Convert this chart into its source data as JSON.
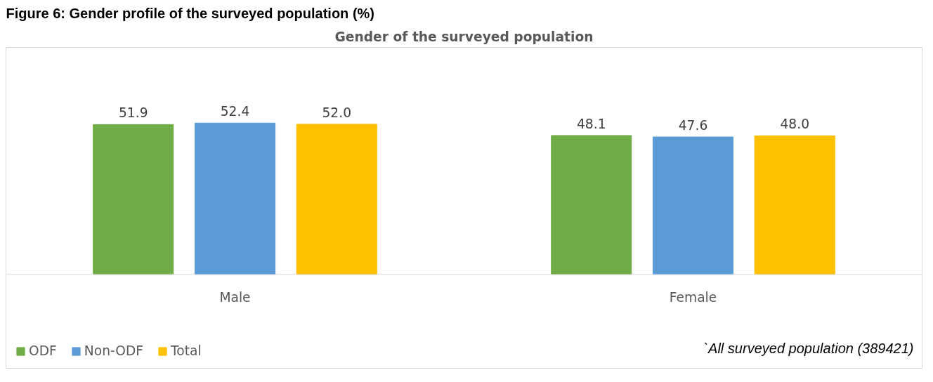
{
  "chart_data": {
    "type": "bar",
    "title": "Gender of the surveyed population",
    "categories": [
      "Male",
      "Female"
    ],
    "series": [
      {
        "name": "ODF",
        "color": "#70ad47",
        "values": [
          51.9,
          48.1
        ],
        "value_labels": [
          "51.9",
          "48.1"
        ]
      },
      {
        "name": "Non-ODF",
        "color": "#5b9bd5",
        "values": [
          52.4,
          47.6
        ],
        "value_labels": [
          "52.4",
          "47.6"
        ]
      },
      {
        "name": "Total",
        "color": "#ffc000",
        "values": [
          52.0,
          48.0
        ],
        "value_labels": [
          "52.0",
          "48.0"
        ]
      }
    ],
    "grid": false,
    "legend": "bottom left",
    "annotations": [
      "Figure 6: Gender profile of the surveyed population (%)",
      "`All surveyed population (389421)"
    ]
  }
}
